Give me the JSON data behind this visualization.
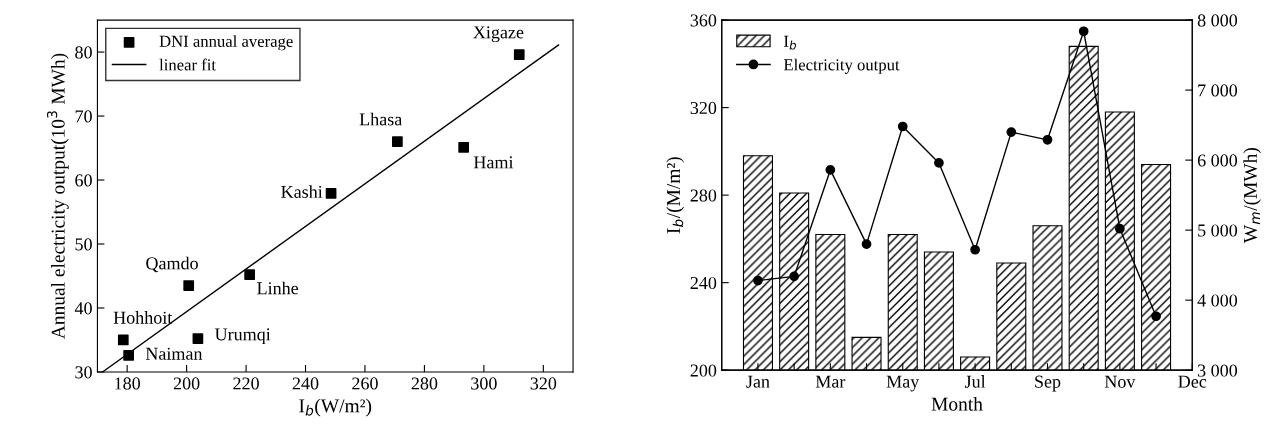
{
  "chart_data": [
    {
      "type": "scatter",
      "xlabel": "I$_{b}$(W/m²)",
      "ylabel": "Annual electricity output(10$^{3}$ MWh)",
      "xlim": [
        170,
        330
      ],
      "ylim": [
        30,
        85
      ],
      "xticks": [
        180,
        200,
        220,
        240,
        260,
        280,
        300,
        320
      ],
      "yticks": [
        30,
        40,
        50,
        60,
        70,
        80
      ],
      "grid": false,
      "legend": "top left",
      "series": [
        {
          "name": "DNI annual average",
          "marker": "square",
          "color": "#000000",
          "x": [
            178.7,
            180.5,
            200.7,
            203.8,
            221.2,
            248.6,
            270.9,
            293.2,
            311.9
          ],
          "values": [
            35.0,
            32.6,
            43.5,
            35.2,
            45.2,
            57.9,
            66.0,
            65.1,
            79.6
          ]
        },
        {
          "name": "linear fit",
          "type": "line",
          "color": "#000000",
          "x": [
            171.7,
            325.1
          ],
          "values": [
            30,
            81.1
          ]
        }
      ],
      "annotations": [
        {
          "text": "Hohhoit",
          "x": 178.7,
          "y": 35.0
        },
        {
          "text": "Naiman",
          "x": 180.5,
          "y": 32.6
        },
        {
          "text": "Qamdo",
          "x": 200.7,
          "y": 43.5
        },
        {
          "text": "Urumqi",
          "x": 203.8,
          "y": 35.2
        },
        {
          "text": "Linhe",
          "x": 221.2,
          "y": 45.2
        },
        {
          "text": "Kashi",
          "x": 248.6,
          "y": 57.9
        },
        {
          "text": "Lhasa",
          "x": 270.9,
          "y": 66.0
        },
        {
          "text": "Hami",
          "x": 293.2,
          "y": 65.1
        },
        {
          "text": "Xigaze",
          "x": 311.9,
          "y": 79.6
        }
      ]
    },
    {
      "type": "bar",
      "xlabel": "Month",
      "ylabel": "I$_{b}$/(M/m²)",
      "y2label": "W$_{m}$/(MWh)",
      "categories": [
        "Jan",
        null,
        "Mar",
        null,
        "May",
        null,
        "Jul",
        null,
        "Sep",
        null,
        "Nov",
        null,
        "Dec"
      ],
      "ylim": [
        200,
        360
      ],
      "yticks": [
        200,
        240,
        280,
        320,
        360
      ],
      "y2lim": [
        3000,
        8000
      ],
      "y2ticks": [
        {
          "value": 3000,
          "label": "3 000"
        },
        {
          "value": 4000,
          "label": "4 000"
        },
        {
          "value": 5000,
          "label": "5 000"
        },
        {
          "value": 6000,
          "label": "6 000"
        },
        {
          "value": 7000,
          "label": "7 000"
        },
        {
          "value": 8000,
          "label": "8 000"
        }
      ],
      "grid": false,
      "legend": "top left",
      "series": [
        {
          "name": "I$_{b}$",
          "color": "#000000",
          "values": [
            298,
            281,
            262,
            215,
            262,
            254,
            206,
            249,
            266,
            348,
            318,
            294,
            null
          ]
        },
        {
          "name": "Electricity output",
          "type": "line",
          "axis": "y2",
          "color": "#000000",
          "marker": "circle",
          "line_style": "solid",
          "values": [
            4280,
            4340,
            5860,
            4800,
            6480,
            5960,
            4720,
            6400,
            6290,
            7840,
            5020,
            3770,
            null
          ]
        }
      ]
    }
  ]
}
